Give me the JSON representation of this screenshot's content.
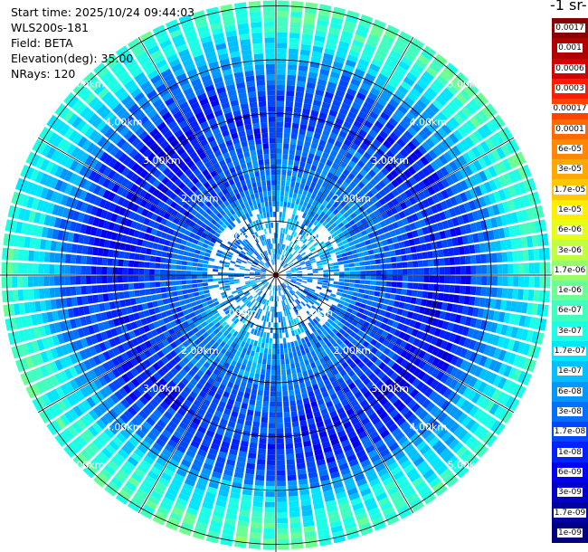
{
  "info": {
    "start_time": "Start time: 2025/10/24 09:44:03",
    "instrument": "WLS200s-181",
    "field": "Field: BETA",
    "elevation": "Elevation(deg): 35.00",
    "nrays": "NRays: 120"
  },
  "colorbar": {
    "title": "-1 sr-",
    "entries": [
      {
        "label": "0.0017",
        "color": "#8a0000",
        "text_color": "#ffffff"
      },
      {
        "label": "0.001",
        "color": "#b00000",
        "text_color": "#ffffff"
      },
      {
        "label": "0.0006",
        "color": "#d40000",
        "text_color": "#ffffff"
      },
      {
        "label": "0.0003",
        "color": "#ff1a00",
        "text_color": "#000000"
      },
      {
        "label": "0.00017",
        "color": "#ff4400",
        "text_color": "#000000"
      },
      {
        "label": "0.0001",
        "color": "#ff6a00",
        "text_color": "#000000"
      },
      {
        "label": "6e-05",
        "color": "#ff8800",
        "text_color": "#000000"
      },
      {
        "label": "3e-05",
        "color": "#ffa800",
        "text_color": "#000000"
      },
      {
        "label": "1.7e-05",
        "color": "#ffc800",
        "text_color": "#000000"
      },
      {
        "label": "1e-05",
        "color": "#ffee00",
        "text_color": "#000000"
      },
      {
        "label": "6e-06",
        "color": "#e6ff1a",
        "text_color": "#000000"
      },
      {
        "label": "3e-06",
        "color": "#c0ff40",
        "text_color": "#000000"
      },
      {
        "label": "1.7e-06",
        "color": "#96ff6a",
        "text_color": "#000000"
      },
      {
        "label": "1e-06",
        "color": "#6cff94",
        "text_color": "#000000"
      },
      {
        "label": "6e-07",
        "color": "#40ffbf",
        "text_color": "#000000"
      },
      {
        "label": "3e-07",
        "color": "#1affe6",
        "text_color": "#000000"
      },
      {
        "label": "1.7e-07",
        "color": "#00e6ff",
        "text_color": "#000000"
      },
      {
        "label": "1e-07",
        "color": "#00c0ff",
        "text_color": "#000000"
      },
      {
        "label": "6e-08",
        "color": "#0098ff",
        "text_color": "#000000"
      },
      {
        "label": "3e-08",
        "color": "#0070ff",
        "text_color": "#000000"
      },
      {
        "label": "1.7e-08",
        "color": "#0048ff",
        "text_color": "#ffffff"
      },
      {
        "label": "1e-08",
        "color": "#0022ff",
        "text_color": "#ffffff"
      },
      {
        "label": "6e-09",
        "color": "#0000f0",
        "text_color": "#ffffff"
      },
      {
        "label": "3e-09",
        "color": "#0000c8",
        "text_color": "#ffffff"
      },
      {
        "label": "1.7e-09",
        "color": "#0000a0",
        "text_color": "#ffffff"
      },
      {
        "label": "1e-09",
        "color": "#000080",
        "text_color": "#ffffff"
      }
    ]
  },
  "chart_data": {
    "type": "heatmap",
    "projection": "polar",
    "nrays": 120,
    "range_rings_km": [
      1,
      2,
      3,
      4,
      5
    ],
    "max_range_km": 5.1,
    "spoke_interval_deg": 30,
    "ring_labels": [
      "1.00km",
      "2.00km",
      "3.00km",
      "4.00km",
      "5.00km"
    ],
    "ring_label_angles_deg": [
      -45,
      45,
      135,
      -135
    ],
    "radial_profile": {
      "range_km": [
        0.0,
        0.5,
        1.0,
        1.5,
        2.0,
        2.5,
        3.0,
        3.5,
        4.0,
        4.5,
        5.0
      ],
      "log10_beta": [
        -7.4,
        -7.3,
        -7.2,
        -7.4,
        -7.6,
        -7.8,
        -8.0,
        -7.9,
        -7.3,
        -6.6,
        -6.3
      ]
    }
  }
}
